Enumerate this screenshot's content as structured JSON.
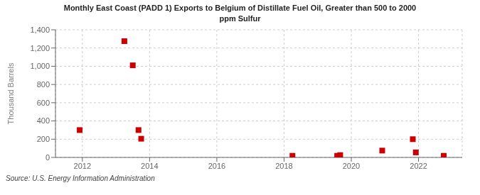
{
  "chart_data": {
    "type": "scatter",
    "title": "Monthly East Coast (PADD 1) Exports to Belgium of Distillate Fuel Oil, Greater than 500 to 2000\nppm Sulfur",
    "ylabel": "Thousand Barrels",
    "annotations": [
      "Source: U.S. Energy Information Administration"
    ],
    "x": [
      2011.92,
      2013.25,
      2013.5,
      2013.67,
      2013.75,
      2018.25,
      2019.58,
      2019.67,
      2020.92,
      2021.83,
      2021.92,
      2022.75
    ],
    "values": [
      300,
      1275,
      1010,
      300,
      205,
      18,
      18,
      25,
      75,
      200,
      55,
      18
    ],
    "color": "#cc0000",
    "marker": "square",
    "xlim": [
      2011.2,
      2023.3
    ],
    "ylim": [
      0,
      1400
    ],
    "xticks": [
      2012,
      2014,
      2016,
      2018,
      2020,
      2022
    ],
    "yticks": [
      0,
      200,
      400,
      600,
      800,
      {
        "value": 1000,
        "label": "1,000"
      },
      {
        "value": 1200,
        "label": "1,200"
      },
      {
        "value": 1400,
        "label": "1,400"
      }
    ],
    "grid": true
  }
}
